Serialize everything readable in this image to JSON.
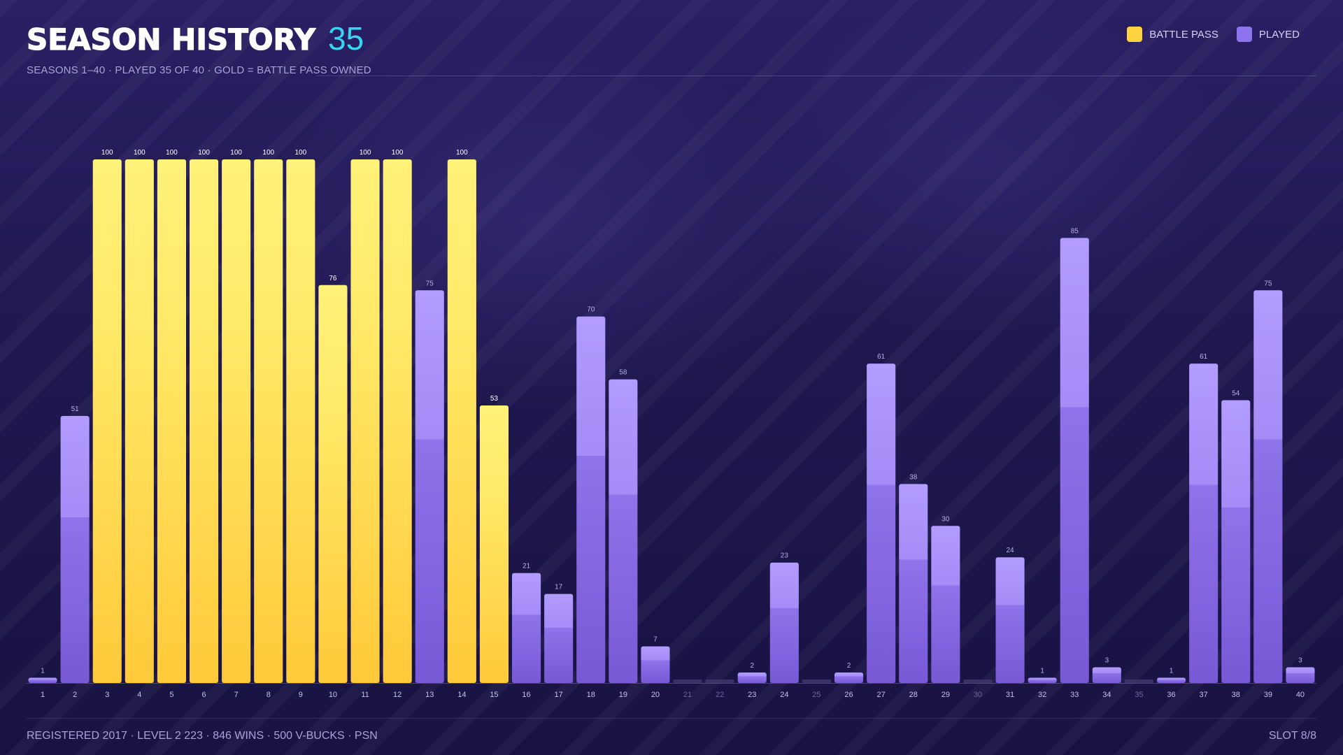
{
  "header": {
    "title": "SEASON HISTORY",
    "count": "35",
    "subtitle": "SEASONS 1–40  ·  PLAYED 35 OF 40  ·  GOLD = BATTLE PASS OWNED"
  },
  "legend": {
    "items": [
      {
        "label": "BATTLE PASS",
        "color": "#ffd23f"
      },
      {
        "label": "PLAYED",
        "color": "#8e73ee"
      }
    ]
  },
  "footer": {
    "left": "REGISTERED 2017  ·  LEVEL 2 223  ·  846 WINS  ·  500 V-BUCKS  ·  PSN",
    "right": "SLOT 8/8"
  },
  "colors": {
    "battle_pass": "#ffd23f",
    "played": "#8e73ee",
    "not_played": "#3a3266",
    "accent": "#36d6f2"
  },
  "chart_data": {
    "type": "bar",
    "ylim": [
      0,
      100
    ],
    "categories": [
      "1",
      "2",
      "3",
      "4",
      "5",
      "6",
      "7",
      "8",
      "9",
      "10",
      "11",
      "12",
      "13",
      "14",
      "15",
      "16",
      "17",
      "18",
      "19",
      "20",
      "21",
      "22",
      "23",
      "24",
      "25",
      "26",
      "27",
      "28",
      "29",
      "30",
      "31",
      "32",
      "33",
      "34",
      "35",
      "36",
      "37",
      "38",
      "39",
      "40"
    ],
    "values": [
      1,
      51,
      100,
      100,
      100,
      100,
      100,
      100,
      100,
      76,
      100,
      100,
      75,
      100,
      53,
      21,
      17,
      70,
      58,
      7,
      0,
      0,
      2,
      23,
      0,
      2,
      61,
      38,
      30,
      0,
      24,
      1,
      85,
      3,
      0,
      1,
      61,
      54,
      75,
      3
    ],
    "battle_pass": [
      false,
      false,
      true,
      true,
      true,
      true,
      true,
      true,
      true,
      true,
      true,
      true,
      false,
      true,
      true,
      false,
      false,
      false,
      false,
      false,
      false,
      false,
      false,
      false,
      false,
      false,
      false,
      false,
      false,
      false,
      false,
      false,
      false,
      false,
      false,
      false,
      false,
      false,
      false,
      false
    ],
    "played": [
      true,
      true,
      true,
      true,
      true,
      true,
      true,
      true,
      true,
      true,
      true,
      true,
      true,
      true,
      true,
      true,
      true,
      true,
      true,
      true,
      false,
      false,
      true,
      true,
      false,
      true,
      true,
      true,
      true,
      false,
      true,
      true,
      true,
      true,
      false,
      true,
      true,
      true,
      true,
      true
    ],
    "series": [
      {
        "name": "BATTLE PASS"
      },
      {
        "name": "PLAYED"
      }
    ]
  }
}
